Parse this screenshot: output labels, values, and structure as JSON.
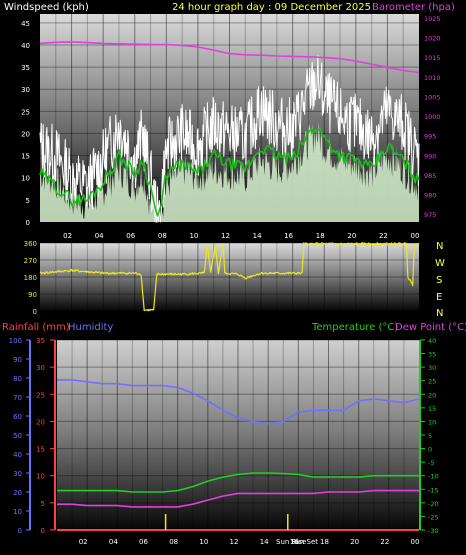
{
  "colors": {
    "wind": "#ffffff",
    "gust_fill": "#d8f5d0",
    "wind_avg": "#19c019",
    "barometer": "#e040e0",
    "direction": "#e8e820",
    "rain": "#ff4040",
    "humidity": "#7070ff",
    "temperature": "#20d020",
    "dew_point": "#e040e0",
    "header_text": "#ffff40",
    "compass_text": "#ffff40",
    "axis_left_top": "#ffffff",
    "axis_right_top": "#e040e0",
    "axis_temp": "#20d020",
    "axis_rain": "#ff4040",
    "axis_hum": "#7070ff"
  },
  "header": {
    "wind_title": "Windspeed (kph)",
    "date_title": "24 hour graph day : 09 December 2025",
    "baro_title": "Barometer (hpa)"
  },
  "compass": [
    "N",
    "W",
    "S",
    "E",
    "N"
  ],
  "bottom_header": {
    "rain_title": "Rainfall (mm)",
    "hum_title": "Humidity",
    "temp_title": "Temperature (°C)",
    "dew_title": "Dew Point (°C)"
  },
  "event_labels": [
    "Sun Rise",
    "Sun Set"
  ],
  "chart_data": [
    {
      "type": "line",
      "title": "24 hour graph day : 09 December 2025",
      "x_ticks": [
        "02",
        "04",
        "06",
        "08",
        "10",
        "12",
        "14",
        "16",
        "18",
        "20",
        "22",
        "00"
      ],
      "y_left": {
        "label": "Windspeed (kph)",
        "ticks": [
          0,
          5,
          10,
          15,
          20,
          25,
          30,
          35,
          40,
          45
        ],
        "range": [
          0,
          47
        ]
      },
      "y_right": {
        "label": "Barometer (hpa)",
        "ticks": [
          975,
          980,
          985,
          990,
          995,
          1000,
          1005,
          1010,
          1015,
          1020,
          1025
        ],
        "range": [
          973,
          1026
        ]
      },
      "series": [
        {
          "name": "Windspeed (kph)",
          "x": [
            0,
            1,
            2,
            3,
            4,
            5,
            5.5,
            6,
            6.5,
            7,
            7.5,
            8,
            9,
            10,
            11,
            12,
            13,
            14,
            15,
            16,
            17,
            17.5,
            18,
            19,
            20,
            21,
            22,
            23,
            24
          ],
          "values": [
            17,
            15,
            10,
            8,
            14,
            22,
            18,
            14,
            20,
            10,
            0,
            16,
            20,
            17,
            22,
            20,
            19,
            26,
            22,
            21,
            29,
            32,
            28,
            24,
            22,
            19,
            25,
            22,
            14
          ]
        },
        {
          "name": "Wind gust (kph)",
          "x": [
            0,
            1,
            2,
            3,
            4,
            5,
            5.5,
            6,
            6.5,
            7,
            7.5,
            8,
            9,
            10,
            11,
            12,
            13,
            14,
            15,
            16,
            17,
            17.5,
            18,
            19,
            20,
            21,
            22,
            23,
            24
          ],
          "values": [
            11,
            9,
            5,
            4,
            7,
            12,
            10,
            8,
            11,
            4,
            0,
            8,
            12,
            10,
            12,
            11,
            10,
            14,
            12,
            13,
            18,
            20,
            17,
            14,
            13,
            11,
            15,
            12,
            8
          ]
        },
        {
          "name": "Wind average (kph)",
          "x": [
            0,
            1,
            2,
            3,
            4,
            5,
            5.5,
            6,
            6.5,
            7,
            7.5,
            8,
            9,
            10,
            11,
            12,
            13,
            14,
            15,
            16,
            17,
            17.5,
            18,
            19,
            20,
            21,
            22,
            23,
            24
          ],
          "values": [
            11,
            8,
            5,
            5,
            9,
            15,
            13,
            11,
            14,
            8,
            0,
            11,
            13,
            11,
            15,
            13,
            12,
            17,
            15,
            14,
            20,
            22,
            19,
            15,
            14,
            12,
            17,
            14,
            9
          ]
        },
        {
          "name": "Barometer (hpa)",
          "axis": "right",
          "x": [
            0,
            1,
            2,
            3,
            4,
            5,
            6,
            7,
            8,
            9,
            10,
            11,
            12,
            13,
            14,
            15,
            16,
            17,
            18,
            19,
            20,
            21,
            22,
            23,
            24
          ],
          "values": [
            1018.5,
            1018.8,
            1018.9,
            1018.7,
            1018.5,
            1018.4,
            1018.3,
            1018.2,
            1018.2,
            1018.0,
            1017.6,
            1016.8,
            1015.9,
            1015.6,
            1015.5,
            1015.3,
            1015.2,
            1015.1,
            1014.9,
            1014.6,
            1014.0,
            1013.2,
            1012.4,
            1011.6,
            1011.1
          ]
        }
      ]
    },
    {
      "type": "line",
      "x_ticks": [
        "02",
        "04",
        "06",
        "08",
        "10",
        "12",
        "14",
        "16",
        "18",
        "20",
        "22",
        "00"
      ],
      "y_left": {
        "ticks": [
          0,
          90,
          180,
          270,
          360
        ],
        "range": [
          0,
          360
        ]
      },
      "series": [
        {
          "name": "Wind direction",
          "x": [
            0,
            2,
            4,
            6,
            6.4,
            6.6,
            7.2,
            7.4,
            9,
            10.4,
            10.6,
            10.8,
            11.1,
            11.3,
            11.6,
            11.7,
            12.5,
            13,
            14,
            15,
            16.6,
            16.7,
            18,
            20,
            22,
            23.2,
            23.3,
            23.6,
            23.7,
            24
          ],
          "values": [
            200,
            215,
            200,
            200,
            195,
            5,
            5,
            195,
            195,
            200,
            350,
            200,
            350,
            200,
            355,
            200,
            195,
            175,
            200,
            200,
            200,
            355,
            355,
            355,
            355,
            355,
            180,
            140,
            355,
            355
          ]
        }
      ]
    },
    {
      "type": "line",
      "x_ticks": [
        "02",
        "04",
        "06",
        "08",
        "10",
        "12",
        "14",
        "16",
        "18",
        "20",
        "22",
        "00"
      ],
      "y_rain": {
        "label": "Rainfall (mm)",
        "ticks": [
          0,
          5,
          10,
          15,
          20,
          25,
          30,
          35
        ],
        "range": [
          0,
          35
        ]
      },
      "y_hum": {
        "label": "Humidity",
        "ticks": [
          0,
          10,
          20,
          30,
          40,
          50,
          60,
          70,
          80,
          90,
          100
        ],
        "range": [
          0,
          100
        ]
      },
      "y_temp": {
        "label": "Temperature (°C)",
        "ticks": [
          -30,
          -25,
          -20,
          -15,
          -10,
          -5,
          0,
          5,
          10,
          15,
          20,
          25,
          30,
          35,
          40
        ],
        "range": [
          -30,
          40
        ]
      },
      "series": [
        {
          "name": "Rainfall (mm)",
          "axis": "rain",
          "x": [
            0,
            24
          ],
          "values": [
            0,
            0
          ]
        },
        {
          "name": "Humidity",
          "axis": "hum",
          "x": [
            0,
            1,
            2,
            3,
            4,
            5,
            6,
            7,
            8,
            9,
            10,
            11,
            12,
            13,
            14,
            15,
            16,
            17,
            18,
            19,
            20,
            21,
            22,
            23,
            24
          ],
          "values": [
            79,
            79,
            78,
            77,
            77,
            76,
            76,
            76,
            75,
            72,
            68,
            63,
            59,
            57,
            56,
            57,
            62,
            63,
            63,
            63,
            68,
            69,
            68,
            67,
            69
          ]
        },
        {
          "name": "Temperature (°C)",
          "axis": "temp",
          "x": [
            0,
            1,
            2,
            3,
            4,
            5,
            6,
            7,
            8,
            9,
            10,
            11,
            12,
            13,
            14,
            15,
            16,
            17,
            18,
            19,
            20,
            21,
            22,
            23,
            24
          ],
          "values": [
            -15.5,
            -15.5,
            -15.5,
            -15.5,
            -15.5,
            -16.0,
            -16.0,
            -16.0,
            -15.5,
            -14.0,
            -12.0,
            -10.5,
            -9.5,
            -9.0,
            -9.0,
            -9.2,
            -9.5,
            -10.5,
            -10.5,
            -10.5,
            -10.5,
            -10.0,
            -10.0,
            -10.0,
            -10.0
          ]
        },
        {
          "name": "Dew Point (°C)",
          "axis": "temp",
          "x": [
            0,
            1,
            2,
            3,
            4,
            5,
            6,
            7,
            8,
            9,
            10,
            11,
            12,
            13,
            14,
            15,
            16,
            17,
            18,
            19,
            20,
            21,
            22,
            23,
            24
          ],
          "values": [
            -20.5,
            -20.5,
            -21.0,
            -21.0,
            -21.0,
            -21.5,
            -21.5,
            -21.5,
            -21.5,
            -20.5,
            -19.0,
            -17.5,
            -16.5,
            -16.5,
            -16.5,
            -16.5,
            -16.5,
            -16.5,
            -16.0,
            -16.0,
            -16.0,
            -15.5,
            -15.5,
            -15.5,
            -15.5
          ]
        }
      ],
      "events": [
        {
          "label": "Sun Rise",
          "x": 7.2
        },
        {
          "label": "Sun Set",
          "x": 15.3
        }
      ]
    }
  ]
}
